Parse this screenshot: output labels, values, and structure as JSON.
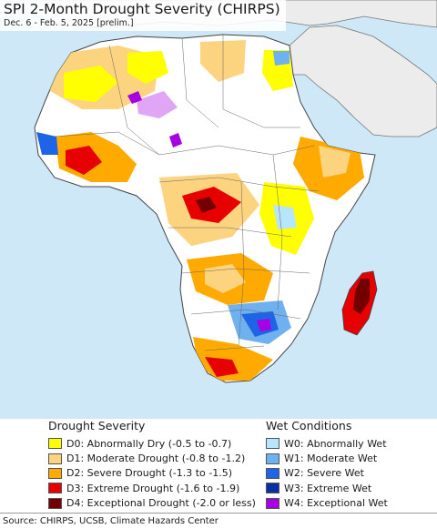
{
  "title": "SPI 2-Month Drought Severity (CHIRPS)",
  "subtitle": "Dec. 6 - Feb. 5, 2025 [prelim.]",
  "colors": {
    "ocean": "#cfe8f7",
    "land_neutral": "#ffffff",
    "outside_region": "#ececec",
    "border": "#555555"
  },
  "legend": {
    "drought": {
      "heading": "Drought Severity",
      "items": [
        {
          "code": "D0",
          "label": "D0: Abnormally Dry (-0.5 to -0.7)",
          "color": "#ffff00"
        },
        {
          "code": "D1",
          "label": "D1: Moderate Drought (-0.8 to -1.2)",
          "color": "#fcd37f"
        },
        {
          "code": "D2",
          "label": "D2: Severe Drought (-1.3 to -1.5)",
          "color": "#ffaa00"
        },
        {
          "code": "D3",
          "label": "D3: Extreme Drought (-1.6 to -1.9)",
          "color": "#e60000"
        },
        {
          "code": "D4",
          "label": "D4: Exceptional Drought (-2.0 or less)",
          "color": "#730000"
        }
      ]
    },
    "wet": {
      "heading": "Wet Conditions",
      "items": [
        {
          "code": "W0",
          "label": "W0: Abnormally Wet",
          "color": "#b7e5fb"
        },
        {
          "code": "W1",
          "label": "W1: Moderate Wet",
          "color": "#6fb1ee"
        },
        {
          "code": "W2",
          "label": "W2: Severe Wet",
          "color": "#1e64e6"
        },
        {
          "code": "W3",
          "label": "W3: Extreme Wet",
          "color": "#0a2fa5"
        },
        {
          "code": "W4",
          "label": "W4: Exceptional Wet",
          "color": "#a700e2"
        }
      ]
    }
  },
  "source": "Source: CHIRPS, UCSB, Climate Hazards Center"
}
